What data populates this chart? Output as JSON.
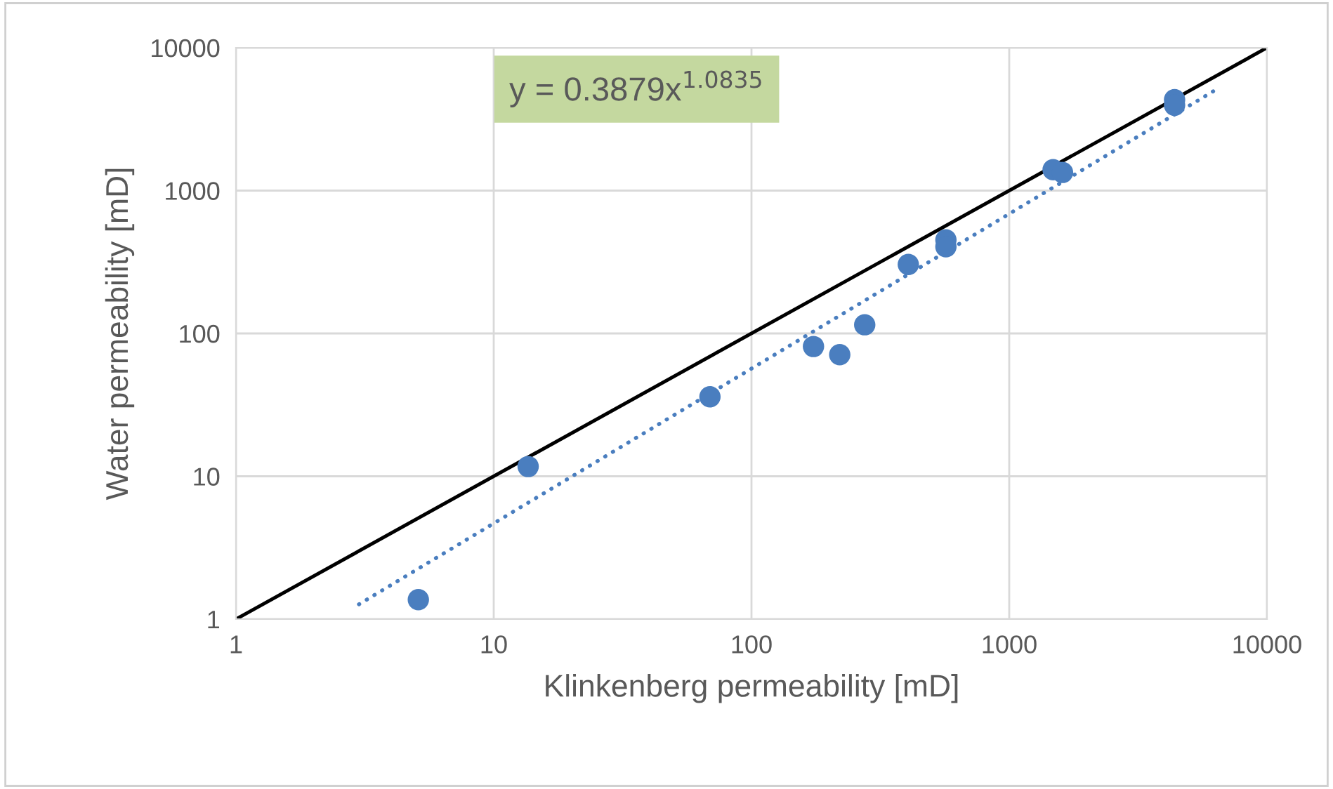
{
  "chart_data": {
    "type": "scatter",
    "xlabel": "Klinkenberg permeability [mD]",
    "ylabel": "Water permeability [mD]",
    "annotations": [
      "y = 0.3879x$^{1.0835}$"
    ],
    "log": "xy",
    "grid": true,
    "xlim": [
      1,
      10000
    ],
    "ylim": [
      1,
      10000
    ],
    "xticks": [
      1,
      10,
      100,
      1000,
      10000
    ],
    "yticks": [
      1,
      10,
      100,
      1000,
      10000
    ],
    "series": [
      {
        "type": "line",
        "color": "#000000",
        "marker": "none",
        "line_style": "solid",
        "x": [
          1,
          10000
        ],
        "values": [
          1,
          10000
        ]
      },
      {
        "type": "line",
        "color": "#4a7ebf",
        "marker": "none",
        "line_style": "dotted",
        "x": [
          3,
          6240
        ],
        "values": [
          1.27,
          5000
        ]
      },
      {
        "color": "#4a7ebf",
        "marker": "circle",
        "x": [
          5.1,
          13.6,
          69,
          174,
          220,
          275,
          406,
          568,
          568,
          1480,
          1610,
          4380,
          4380
        ],
        "values": [
          1.37,
          11.7,
          36,
          81,
          71,
          115,
          304,
          452,
          404,
          1400,
          1340,
          4330,
          3960
        ]
      }
    ]
  }
}
